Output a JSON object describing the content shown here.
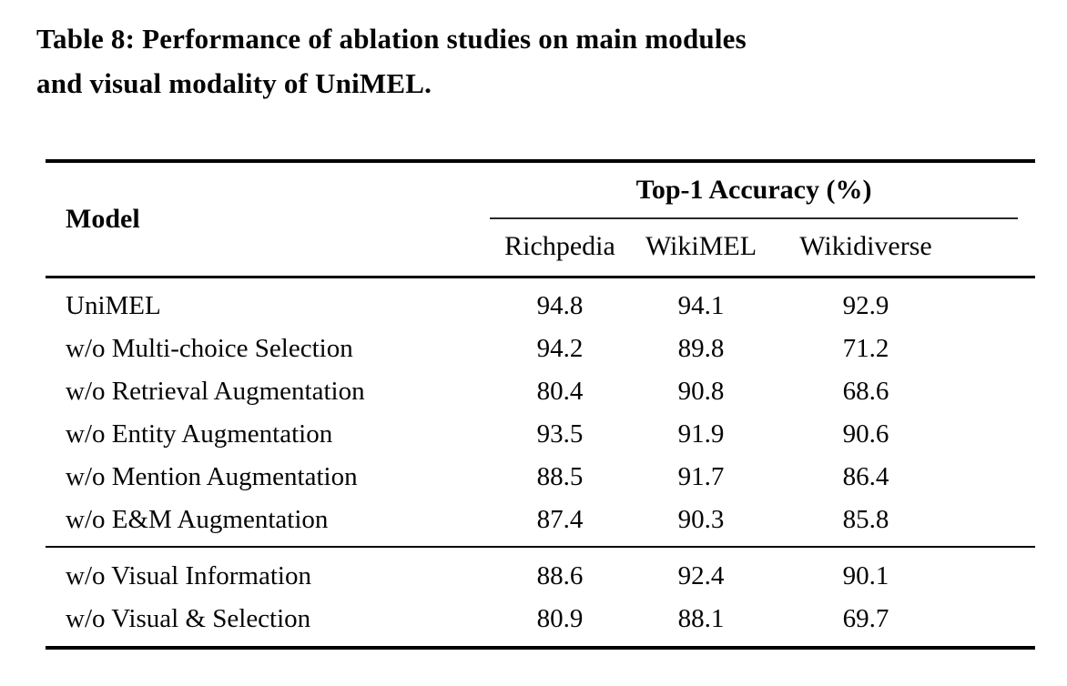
{
  "caption": {
    "line1": "Table 8: Performance of ablation studies on main modules",
    "line2": "and visual modality of UniMEL.",
    "full_text": "Table 8: Performance of ablation studies on main modules and visual modality of UniMEL."
  },
  "table": {
    "header": {
      "model": "Model",
      "group": "Top-1 Accuracy (%)",
      "columns": [
        "Richpedia",
        "WikiMEL",
        "Wikidiverse"
      ]
    },
    "rows_main": [
      {
        "model": "UniMEL",
        "values": [
          "94.8",
          "94.1",
          "92.9"
        ]
      },
      {
        "model": "w/o Multi-choice Selection",
        "values": [
          "94.2",
          "89.8",
          "71.2"
        ]
      },
      {
        "model": "w/o Retrieval Augmentation",
        "values": [
          "80.4",
          "90.8",
          "68.6"
        ]
      },
      {
        "model": "w/o Entity Augmentation",
        "values": [
          "93.5",
          "91.9",
          "90.6"
        ]
      },
      {
        "model": "w/o Mention Augmentation",
        "values": [
          "88.5",
          "91.7",
          "86.4"
        ]
      },
      {
        "model": "w/o E&M Augmentation",
        "values": [
          "87.4",
          "90.3",
          "85.8"
        ]
      }
    ],
    "rows_visual": [
      {
        "model": "w/o Visual Information",
        "values": [
          "88.6",
          "92.4",
          "90.1"
        ]
      },
      {
        "model": "w/o Visual & Selection",
        "values": [
          "80.9",
          "88.1",
          "69.7"
        ]
      }
    ]
  },
  "colors": {
    "background": "#ffffff",
    "text": "#050505",
    "rule": "#000000"
  }
}
